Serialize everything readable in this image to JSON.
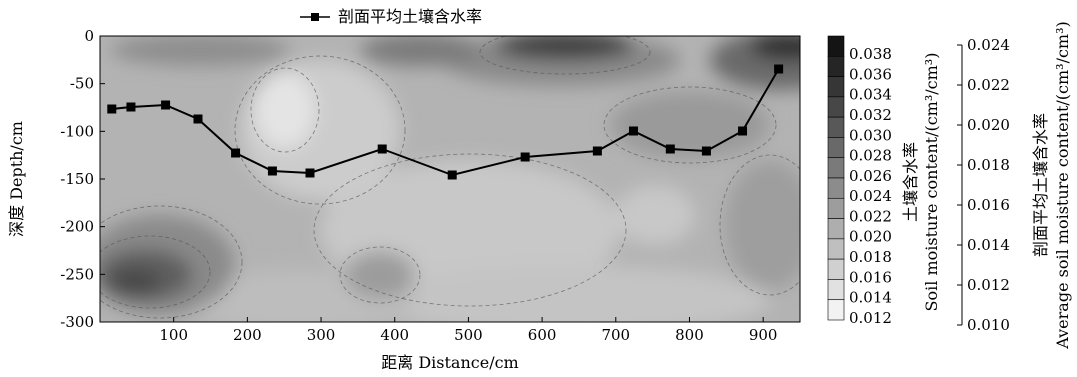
{
  "chart_data": {
    "type": "line",
    "overlay_on": "contour",
    "legend": {
      "label": "剖面平均土壤含水率",
      "placement": "top-center"
    },
    "xlabel": "距离 Distance/cm",
    "ylabel": "深度 Depth/cm",
    "colorbar_label_cn": "土壤含水率",
    "colorbar_label_en": "Soil moisture content/(cm³/cm³)",
    "right_axis_label_cn": "剖面平均土壤含水率",
    "right_axis_label_en": "Average soil moisture content/(cm³/cm³)",
    "xlim": [
      0,
      950
    ],
    "ylim": [
      -300,
      0
    ],
    "x_ticks": [
      "100",
      "200",
      "300",
      "400",
      "500",
      "600",
      "700",
      "800",
      "900"
    ],
    "y_ticks": [
      "0",
      "-50",
      "-100",
      "-150",
      "-200",
      "-250",
      "-300"
    ],
    "colorbar_ticks": [
      "0.038",
      "0.036",
      "0.034",
      "0.032",
      "0.030",
      "0.028",
      "0.026",
      "0.024",
      "0.022",
      "0.020",
      "0.018",
      "0.016",
      "0.014",
      "0.012"
    ],
    "right_ticks": [
      "0.024",
      "0.022",
      "0.020",
      "0.018",
      "0.016",
      "0.014",
      "0.012",
      "0.010"
    ],
    "right_ylim": [
      0.01,
      0.024
    ],
    "colorbar_range": [
      0.012,
      0.038
    ],
    "series": [
      {
        "name": "剖面平均土壤含水率",
        "x": [
          16,
          42,
          89,
          133,
          184,
          234,
          285,
          383,
          478,
          577,
          675,
          724,
          774,
          823,
          872,
          921
        ],
        "y": [
          0.0208,
          0.0209,
          0.021,
          0.0203,
          0.0186,
          0.0177,
          0.0176,
          0.0188,
          0.0175,
          0.0184,
          0.0187,
          0.0197,
          0.0188,
          0.0187,
          0.0197,
          0.0228
        ]
      }
    ],
    "contour_note": "shaded moisture field: darkest near surface at 440-640 cm and 800-900 cm; dark pocket at bottom-left 0-120 cm, -230 to -290 cm; lightest zone 220-360 cm, -60 to -160 cm"
  }
}
